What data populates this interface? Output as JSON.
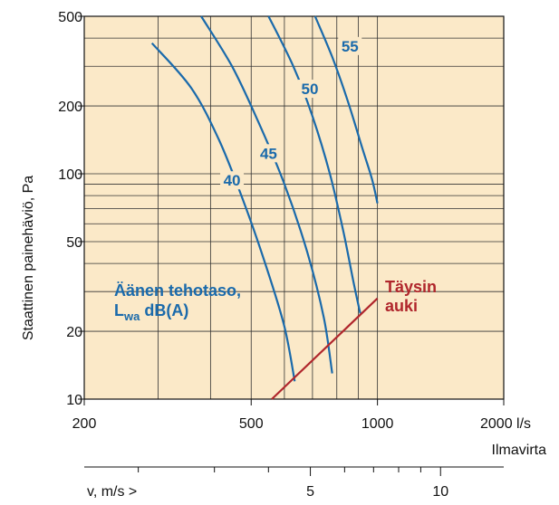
{
  "chart_data": {
    "type": "line",
    "xscale": "log",
    "yscale": "log",
    "xlim": [
      200,
      2000
    ],
    "ylim": [
      10,
      500
    ],
    "grid": true,
    "background_color": "#fbe9c8",
    "curve_color": "#1a6aab",
    "open_line_color": "#b0262c",
    "ylabel": "Staattinen painehäviö, Pa",
    "xlabel": "Ilmavirta",
    "x_ticks": [
      200,
      500,
      1000,
      2000
    ],
    "x_tick_labels": [
      "200",
      "500",
      "1000",
      "2000 l/s"
    ],
    "y_ticks": [
      10,
      20,
      50,
      100,
      200,
      500
    ],
    "y_tick_labels": [
      "10",
      "20",
      "50",
      "100",
      "200",
      "500"
    ],
    "series": [
      {
        "name": "40",
        "label_at": [
          450,
          91
        ],
        "points": [
          [
            290,
            380
          ],
          [
            360,
            240
          ],
          [
            420,
            140
          ],
          [
            480,
            75
          ],
          [
            540,
            40
          ],
          [
            600,
            21
          ],
          [
            635,
            12
          ]
        ]
      },
      {
        "name": "45",
        "label_at": [
          550,
          120
        ],
        "points": [
          [
            380,
            500
          ],
          [
            450,
            300
          ],
          [
            520,
            170
          ],
          [
            600,
            90
          ],
          [
            680,
            45
          ],
          [
            745,
            23
          ],
          [
            780,
            13
          ]
        ]
      },
      {
        "name": "50",
        "label_at": [
          690,
          232
        ],
        "points": [
          [
            550,
            500
          ],
          [
            630,
            300
          ],
          [
            700,
            180
          ],
          [
            770,
            100
          ],
          [
            830,
            55
          ],
          [
            880,
            32
          ],
          [
            910,
            24
          ]
        ]
      },
      {
        "name": "55",
        "label_at": [
          860,
          359
        ],
        "points": [
          [
            710,
            500
          ],
          [
            780,
            330
          ],
          [
            850,
            210
          ],
          [
            920,
            130
          ],
          [
            970,
            95
          ],
          [
            1000,
            74
          ]
        ]
      }
    ],
    "open_line": {
      "name": "Täysin auki",
      "points": [
        [
          560,
          10
        ],
        [
          1000,
          28
        ]
      ]
    },
    "annotations": {
      "sound_power_line1": "Äänen tehotaso,",
      "sound_power_base": "L",
      "sound_power_sub": "wa",
      "sound_power_rest": " dB(A)",
      "open_line1": "Täysin",
      "open_line2": "auki"
    },
    "velocity_axis": {
      "label": "v, m/s >",
      "ticks": [
        5,
        10
      ],
      "tick_labels": [
        "5",
        "10"
      ]
    }
  }
}
